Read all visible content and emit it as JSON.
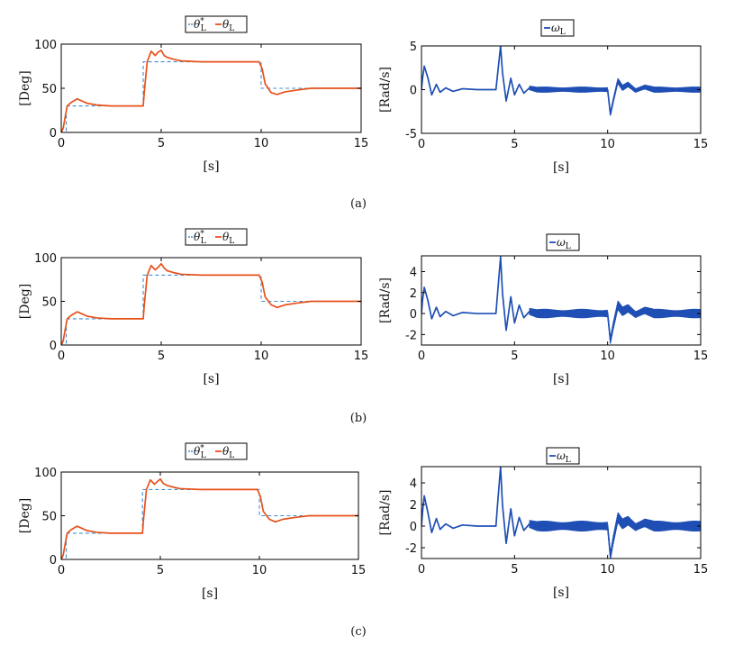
{
  "colors": {
    "reference": "#3c8fd6",
    "angle": "#e8501a",
    "speed": "#1f4fb4",
    "axis": "#000000"
  },
  "captions": [
    "(a)",
    "(b)",
    "(c)"
  ],
  "chart_data": [
    {
      "type": "line",
      "xlabel": "[s]",
      "ylabel": "[Deg]",
      "xlim": [
        0,
        15
      ],
      "ylim": [
        0,
        100
      ],
      "xticks": [
        "0",
        "5",
        "10",
        "15"
      ],
      "yticks": [
        "0",
        "50",
        "100"
      ],
      "legend": [
        "θ*L",
        "θL"
      ],
      "series": [
        {
          "name": "θ*L",
          "style": "dashed",
          "x": [
            0,
            0.25,
            0.25,
            4.1,
            4.1,
            10,
            10,
            15
          ],
          "y": [
            0,
            0,
            30,
            30,
            80,
            80,
            50,
            50
          ]
        },
        {
          "name": "θL",
          "style": "solid",
          "x": [
            0,
            0.1,
            0.2,
            0.3,
            0.5,
            0.8,
            1.0,
            1.3,
            1.8,
            2.5,
            4.1,
            4.15,
            4.3,
            4.5,
            4.7,
            4.85,
            5.0,
            5.15,
            5.3,
            5.6,
            6.0,
            7,
            8,
            9.9,
            10.05,
            10.2,
            10.5,
            10.8,
            11.2,
            11.8,
            12.5,
            13.5,
            15
          ],
          "y": [
            0,
            5,
            18,
            30,
            34,
            38,
            36,
            33,
            31,
            30,
            30,
            45,
            80,
            92,
            87,
            91,
            93,
            87,
            85,
            83,
            81,
            80,
            80,
            80,
            72,
            55,
            45,
            43,
            46,
            48,
            50,
            50,
            50
          ]
        }
      ]
    },
    {
      "type": "line",
      "xlabel": "[s]",
      "ylabel": "[Rad/s]",
      "xlim": [
        0,
        15
      ],
      "ylim": [
        -5,
        5
      ],
      "xticks": [
        "0",
        "5",
        "10",
        "15"
      ],
      "yticks": [
        "-5",
        "0",
        "5"
      ],
      "legend": [
        "ωL"
      ],
      "series": [
        {
          "name": "ωL",
          "x": [
            0,
            0.05,
            0.15,
            0.35,
            0.55,
            0.8,
            1.0,
            1.3,
            1.7,
            2.2,
            3.0,
            4.0,
            4.1,
            4.25,
            4.35,
            4.55,
            4.8,
            5.0,
            5.25,
            5.5,
            5.8,
            6.2,
            10.0,
            10.15,
            10.3,
            10.55,
            10.8,
            11.1,
            11.5,
            12.0,
            12.5,
            15
          ],
          "y": [
            0,
            1.2,
            2.7,
            1.3,
            -0.6,
            0.6,
            -0.3,
            0.2,
            -0.2,
            0.1,
            0,
            0,
            2.0,
            5.0,
            2.0,
            -1.3,
            1.3,
            -0.6,
            0.6,
            -0.4,
            0.2,
            0,
            0,
            -2.8,
            -1.3,
            1.0,
            0.2,
            0.6,
            -0.1,
            0.3,
            0,
            0
          ],
          "ripple_range": [
            5.8,
            15
          ],
          "ripple_amplitude": 0.35
        }
      ]
    },
    {
      "type": "line",
      "xlabel": "[s]",
      "ylabel": "[Deg]",
      "xlim": [
        0,
        15
      ],
      "ylim": [
        0,
        100
      ],
      "xticks": [
        "0",
        "5",
        "10",
        "15"
      ],
      "yticks": [
        "0",
        "50",
        "100"
      ],
      "legend": [
        "θ*L",
        "θL"
      ],
      "series": [
        {
          "name": "θ*L",
          "style": "dashed",
          "x": [
            0,
            0.25,
            0.25,
            4.1,
            4.1,
            10,
            10,
            15
          ],
          "y": [
            0,
            0,
            30,
            30,
            80,
            80,
            50,
            50
          ]
        },
        {
          "name": "θL",
          "style": "solid",
          "x": [
            0,
            0.1,
            0.2,
            0.3,
            0.5,
            0.8,
            1.0,
            1.3,
            1.8,
            2.5,
            4.1,
            4.15,
            4.3,
            4.5,
            4.7,
            4.85,
            5.0,
            5.15,
            5.3,
            5.6,
            6.0,
            7,
            8,
            9.9,
            10.05,
            10.2,
            10.5,
            10.8,
            11.2,
            11.8,
            12.5,
            13.5,
            15
          ],
          "y": [
            0,
            5,
            18,
            30,
            34,
            38,
            36,
            33,
            31,
            30,
            30,
            45,
            80,
            91,
            86,
            89,
            93,
            88,
            85,
            83,
            81,
            80,
            80,
            80,
            72,
            55,
            46,
            43,
            46,
            48,
            50,
            50,
            50
          ]
        }
      ]
    },
    {
      "type": "line",
      "xlabel": "[s]",
      "ylabel": "[Rad/s]",
      "xlim": [
        0,
        15
      ],
      "ylim": [
        -3,
        5.5
      ],
      "xticks": [
        "0",
        "5",
        "10",
        "15"
      ],
      "yticks": [
        "-2",
        "0",
        "2",
        "4"
      ],
      "legend": [
        "ωL"
      ],
      "series": [
        {
          "name": "ωL",
          "x": [
            0,
            0.05,
            0.15,
            0.35,
            0.55,
            0.8,
            1.0,
            1.3,
            1.7,
            2.2,
            3.0,
            4.0,
            4.1,
            4.25,
            4.35,
            4.55,
            4.8,
            5.0,
            5.25,
            5.5,
            5.8,
            6.2,
            10.0,
            10.15,
            10.3,
            10.55,
            10.8,
            11.1,
            11.5,
            12.0,
            12.5,
            15
          ],
          "y": [
            0,
            1.2,
            2.5,
            1.2,
            -0.5,
            0.6,
            -0.3,
            0.2,
            -0.2,
            0.1,
            0,
            0,
            2.2,
            5.4,
            2.0,
            -1.6,
            1.6,
            -0.9,
            0.8,
            -0.4,
            0.2,
            0,
            0,
            -2.6,
            -1.2,
            0.8,
            0.2,
            0.5,
            -0.1,
            0.3,
            0,
            0
          ],
          "ripple_range": [
            5.8,
            15
          ],
          "ripple_amplitude": 0.45
        }
      ]
    },
    {
      "type": "line",
      "xlabel": "[s]",
      "ylabel": "[Deg]",
      "xlim": [
        0,
        15
      ],
      "ylim": [
        0,
        100
      ],
      "xticks": [
        "0",
        "5",
        "10",
        "15"
      ],
      "yticks": [
        "0",
        "50",
        "100"
      ],
      "legend": [
        "θ*L",
        "θL"
      ],
      "series": [
        {
          "name": "θ*L",
          "style": "dashed",
          "x": [
            0,
            0.25,
            0.25,
            4.1,
            4.1,
            10,
            10,
            15
          ],
          "y": [
            0,
            0,
            30,
            30,
            80,
            80,
            50,
            50
          ]
        },
        {
          "name": "θL",
          "style": "solid",
          "x": [
            0,
            0.1,
            0.2,
            0.3,
            0.5,
            0.8,
            1.0,
            1.3,
            1.8,
            2.5,
            4.1,
            4.15,
            4.3,
            4.5,
            4.7,
            4.85,
            5.0,
            5.15,
            5.3,
            5.6,
            6.0,
            7,
            8,
            9.9,
            10.05,
            10.2,
            10.5,
            10.8,
            11.2,
            11.8,
            12.5,
            13.5,
            15
          ],
          "y": [
            0,
            5,
            18,
            30,
            34,
            38,
            36,
            33,
            31,
            30,
            30,
            45,
            80,
            91,
            86,
            89,
            92,
            87,
            85,
            83,
            81,
            80,
            80,
            80,
            72,
            55,
            46,
            43,
            46,
            48,
            50,
            50,
            50
          ]
        }
      ]
    },
    {
      "type": "line",
      "xlabel": "[s]",
      "ylabel": "[Rad/s]",
      "xlim": [
        0,
        15
      ],
      "ylim": [
        -3,
        5.5
      ],
      "xticks": [
        "0",
        "5",
        "10",
        "15"
      ],
      "yticks": [
        "-2",
        "0",
        "2",
        "4"
      ],
      "legend": [
        "ωL"
      ],
      "series": [
        {
          "name": "ωL",
          "x": [
            0,
            0.05,
            0.15,
            0.35,
            0.55,
            0.8,
            1.0,
            1.3,
            1.7,
            2.2,
            3.0,
            4.0,
            4.1,
            4.25,
            4.35,
            4.55,
            4.8,
            5.0,
            5.25,
            5.5,
            5.8,
            6.2,
            10.0,
            10.15,
            10.3,
            10.55,
            10.8,
            11.1,
            11.5,
            12.0,
            12.5,
            15
          ],
          "y": [
            0,
            1.2,
            2.8,
            1.2,
            -0.6,
            0.7,
            -0.3,
            0.2,
            -0.2,
            0.1,
            0,
            0,
            2.3,
            5.5,
            2.0,
            -1.6,
            1.6,
            -0.9,
            0.8,
            -0.4,
            0.2,
            0,
            0,
            -2.8,
            -1.3,
            0.8,
            0.2,
            0.5,
            -0.1,
            0.3,
            0,
            0
          ],
          "ripple_range": [
            5.8,
            15
          ],
          "ripple_amplitude": 0.5
        }
      ]
    }
  ]
}
